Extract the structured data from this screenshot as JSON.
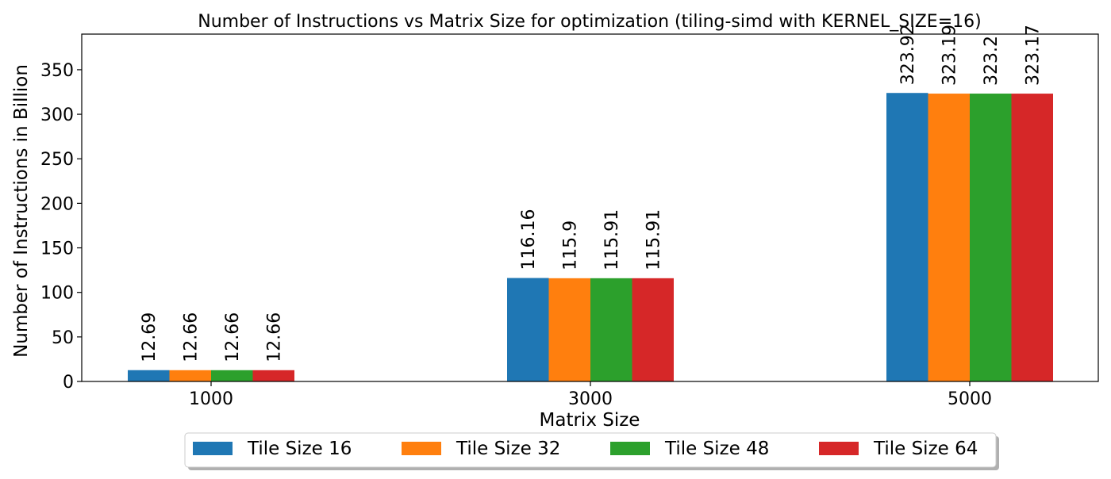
{
  "chart_data": {
    "type": "bar",
    "title": "Number of Instructions vs Matrix Size for optimization (tiling-simd with KERNEL_SIZE=16)",
    "xlabel": "Matrix Size",
    "ylabel": "Number of Instructions in Billion",
    "categories": [
      "1000",
      "3000",
      "5000"
    ],
    "ylim": [
      0,
      390
    ],
    "yticks": [
      0,
      50,
      100,
      150,
      200,
      250,
      300,
      350
    ],
    "grid": false,
    "legend_position": "bottom-center",
    "series": [
      {
        "name": "Tile Size 16",
        "color": "#1f77b4",
        "values": [
          12.69,
          116.16,
          323.92
        ]
      },
      {
        "name": "Tile Size 32",
        "color": "#ff7f0e",
        "values": [
          12.66,
          115.9,
          323.19
        ]
      },
      {
        "name": "Tile Size 48",
        "color": "#2ca02c",
        "values": [
          12.66,
          115.91,
          323.2
        ]
      },
      {
        "name": "Tile Size 64",
        "color": "#d62728",
        "values": [
          12.66,
          115.91,
          323.17
        ]
      }
    ]
  }
}
